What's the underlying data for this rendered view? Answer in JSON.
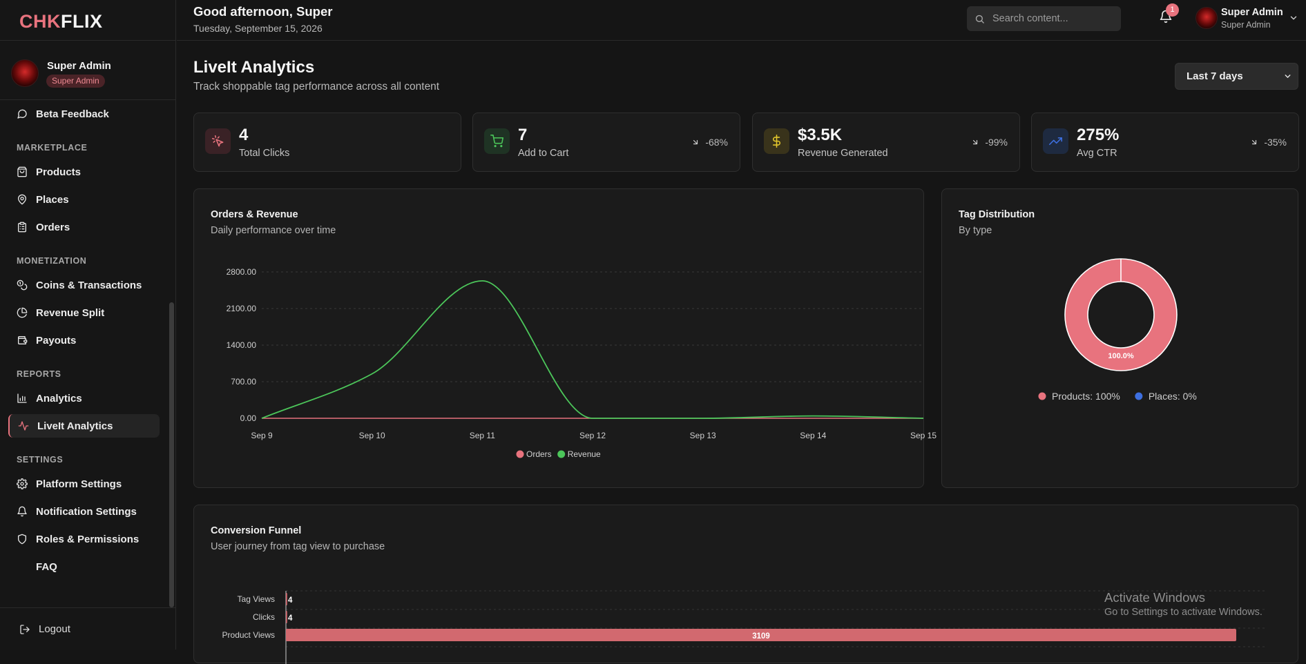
{
  "brand": {
    "logo_part1": "CHK",
    "logo_part2": "FLIX"
  },
  "sidebar": {
    "profile": {
      "name": "Super Admin",
      "role": "Super Admin"
    },
    "items": [
      {
        "label": "Beta Feedback",
        "icon": "message-circle-icon"
      },
      {
        "label": "Products",
        "icon": "shopping-bag-icon"
      },
      {
        "label": "Places",
        "icon": "map-pin-icon"
      },
      {
        "label": "Orders",
        "icon": "clipboard-list-icon"
      },
      {
        "label": "Coins & Transactions",
        "icon": "coins-icon"
      },
      {
        "label": "Revenue Split",
        "icon": "pie-chart-icon"
      },
      {
        "label": "Payouts",
        "icon": "wallet-icon"
      },
      {
        "label": "Analytics",
        "icon": "bar-chart-icon"
      },
      {
        "label": "LiveIt Analytics",
        "icon": "activity-icon"
      },
      {
        "label": "Platform Settings",
        "icon": "gear-icon"
      },
      {
        "label": "Notification Settings",
        "icon": "bell-icon"
      },
      {
        "label": "Roles & Permissions",
        "icon": "shield-icon"
      },
      {
        "label": "FAQ",
        "icon": ""
      }
    ],
    "sections": {
      "marketplace": "MARKETPLACE",
      "monetization": "MONETIZATION",
      "reports": "REPORTS",
      "settings": "SETTINGS"
    },
    "logout_label": "Logout"
  },
  "topbar": {
    "greeting": "Good afternoon, Super",
    "date": "Tuesday, September 15, 2026",
    "search_placeholder": "Search content...",
    "notification_count": "1",
    "user_name": "Super Admin",
    "user_role": "Super Admin"
  },
  "page": {
    "title": "LiveIt Analytics",
    "subtitle": "Track shoppable tag performance across all content",
    "range": "Last 7 days"
  },
  "stats": [
    {
      "value": "4",
      "label": "Total Clicks",
      "change": "",
      "icon": "cursor-click-icon"
    },
    {
      "value": "7",
      "label": "Add to Cart",
      "change": "-68%",
      "icon": "shopping-cart-icon"
    },
    {
      "value": "$3.5K",
      "label": "Revenue Generated",
      "change": "-99%",
      "icon": "dollar-sign-icon"
    },
    {
      "value": "275%",
      "label": "Avg CTR",
      "change": "-35%",
      "icon": "trending-up-icon"
    }
  ],
  "colors": {
    "accent": "#e8737e",
    "green": "#4cc65a",
    "blue": "#3d6fe0",
    "yellow": "#e3c72c"
  },
  "orders_revenue": {
    "title": "Orders & Revenue",
    "subtitle": "Daily performance over time"
  },
  "tag_distribution": {
    "title": "Tag Distribution",
    "subtitle": "By type"
  },
  "funnel": {
    "title": "Conversion Funnel",
    "subtitle": "User journey from tag view to purchase"
  },
  "chart_data": [
    {
      "type": "line",
      "categories": [
        "Sep 9",
        "Sep 10",
        "Sep 11",
        "Sep 12",
        "Sep 13",
        "Sep 14",
        "Sep 15"
      ],
      "series": [
        {
          "name": "Orders",
          "values": [
            0,
            0,
            0,
            0,
            0,
            0,
            0
          ],
          "color": "#e8737e"
        },
        {
          "name": "Revenue",
          "values": [
            0,
            850,
            2630,
            0,
            0,
            45,
            0
          ],
          "color": "#4cc65a"
        }
      ],
      "yticks": [
        "0.00",
        "700.00",
        "1400.00",
        "2100.00",
        "2800.00"
      ],
      "ylim": [
        0,
        2800
      ],
      "grid": true,
      "legend": "bottom"
    },
    {
      "type": "pie",
      "donut": true,
      "slices": [
        {
          "name": "Products",
          "value": 100,
          "color": "#e8737e",
          "legend": "Products: 100%"
        },
        {
          "name": "Places",
          "value": 0,
          "color": "#3d6fe0",
          "legend": "Places: 0%"
        }
      ],
      "center_label": "100.0%",
      "legend": "bottom"
    },
    {
      "type": "bar",
      "orientation": "horizontal",
      "categories": [
        "Tag Views",
        "Clicks",
        "Product Views"
      ],
      "values": [
        4,
        4,
        3109
      ],
      "value_labels": [
        "4",
        "4",
        "3109"
      ],
      "color": "#d2696f",
      "xlim": [
        0,
        3109
      ]
    }
  ],
  "watermark": {
    "title": "Activate Windows",
    "subtitle": "Go to Settings to activate Windows."
  }
}
